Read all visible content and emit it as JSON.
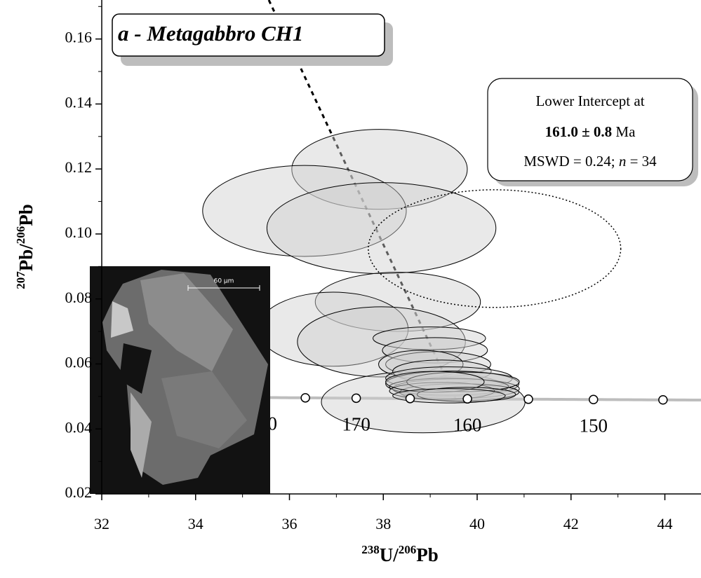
{
  "chart_data": {
    "type": "concordia",
    "title": "a - Metagabbro CH1",
    "x_label": {
      "iso1": "238",
      "el1": "U/",
      "iso2": "206",
      "el2": "Pb"
    },
    "y_label": {
      "iso1": "207",
      "el1": "Pb/",
      "iso2": "206",
      "el2": "Pb"
    },
    "xlim": [
      32,
      44.77
    ],
    "ylim": [
      0.02,
      0.172
    ],
    "xticks": [
      32,
      34,
      36,
      38,
      40,
      42,
      44
    ],
    "yticks": [
      0.02,
      0.04,
      0.06,
      0.08,
      {
        "value": 0.1,
        "label": "0.10"
      },
      0.12,
      0.14,
      0.16
    ],
    "annotation": {
      "line1": "Lower Intercept at",
      "age": "161.0 ± 0.8",
      "unit": "Ma",
      "mswd": "MSWD = 0.24; ",
      "n": "n",
      "n_value": " = 34"
    },
    "concordia": {
      "color": "#bdbdbd",
      "marker_ages": [
        175,
        170,
        165,
        160,
        155,
        150,
        145
      ],
      "age_labels": [
        {
          "value": 180,
          "label": "0"
        },
        170,
        160,
        150
      ]
    },
    "discordia": {
      "x": [
        35.56,
        39.54
      ],
      "y": [
        0.172,
        0.0493
      ]
    },
    "ellipse_fill": "#cfcfcf",
    "ellipses": {
      "x": [
        37.92,
        36.32,
        37.96,
        38.31,
        36.93,
        37.96,
        38.85,
        38.98,
        39.1,
        39.17,
        38.8,
        39.25,
        39.4,
        39.47,
        39.55,
        39.4,
        39.62,
        39.25,
        39.7,
        39.1,
        39.77,
        39.4
      ],
      "y": [
        0.1199,
        0.1071,
        0.1018,
        0.0791,
        0.0707,
        0.0668,
        0.0483,
        0.0679,
        0.0642,
        0.0599,
        0.0599,
        0.0577,
        0.0556,
        0.0539,
        0.0524,
        0.053,
        0.0513,
        0.0517,
        0.0545,
        0.0545,
        0.0506,
        0.0502
      ],
      "x_err": [
        1.87,
        2.17,
        2.44,
        1.76,
        1.6,
        1.79,
        2.17,
        1.2,
        1.12,
        1.12,
        0.9,
        1.05,
        1.35,
        1.42,
        1.35,
        1.27,
        1.27,
        1.12,
        1.2,
        1.05,
        1.05,
        1.2
      ],
      "y_err": [
        0.0123,
        0.014,
        0.014,
        0.0091,
        0.0114,
        0.0108,
        0.0095,
        0.0035,
        0.0039,
        0.0039,
        0.0043,
        0.0035,
        0.0035,
        0.0039,
        0.003,
        0.0026,
        0.0026,
        0.0026,
        0.003,
        0.0032,
        0.0022,
        0.0022
      ]
    },
    "excluded": {
      "x": [
        40.37
      ],
      "y": [
        0.0955
      ],
      "x_err": [
        2.69
      ],
      "y_err": [
        0.0181
      ]
    },
    "inset": {
      "scale_label": "60 µm"
    }
  }
}
